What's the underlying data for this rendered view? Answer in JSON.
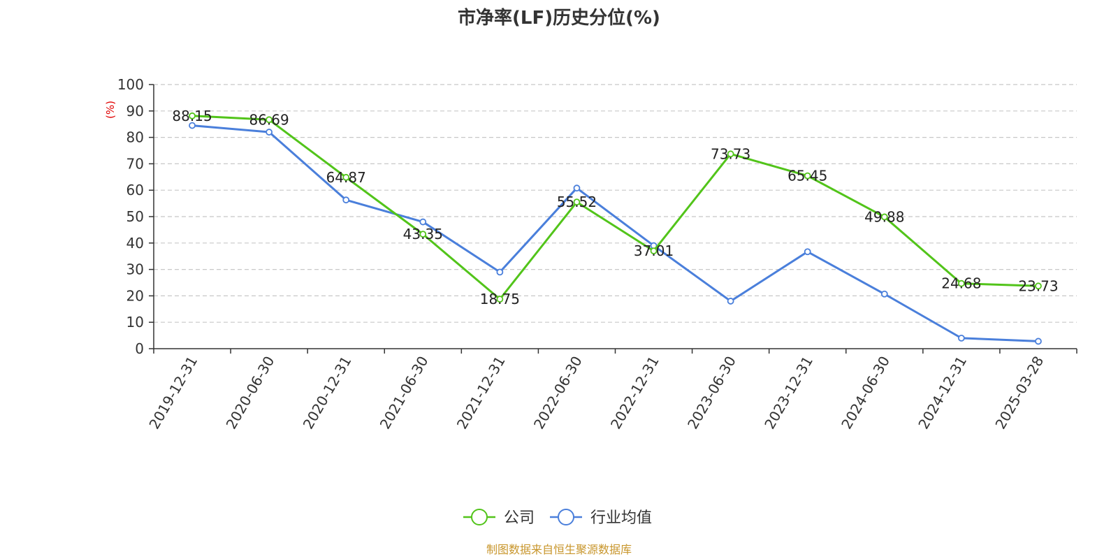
{
  "chart_data": {
    "type": "line",
    "title": "市净率(LF)历史分位(%)",
    "ylabel": "(%)",
    "ylim": [
      0,
      100
    ],
    "yticks": [
      0,
      10,
      20,
      30,
      40,
      50,
      60,
      70,
      80,
      90,
      100
    ],
    "grid": true,
    "legend_position": "bottom",
    "categories": [
      "2019-12-31",
      "2020-06-30",
      "2020-12-31",
      "2021-06-30",
      "2021-12-31",
      "2022-06-30",
      "2022-12-31",
      "2023-06-30",
      "2023-12-31",
      "2024-06-30",
      "2024-12-31",
      "2025-03-28"
    ],
    "series": [
      {
        "name": "公司",
        "color": "#52c41a",
        "show_labels": true,
        "values": [
          88.15,
          86.69,
          64.87,
          43.35,
          18.75,
          55.52,
          37.01,
          73.73,
          65.45,
          49.88,
          24.68,
          23.73
        ]
      },
      {
        "name": "行业均值",
        "color": "#4a7fdb",
        "show_labels": false,
        "values": [
          84.5,
          82.0,
          56.3,
          48.0,
          29.0,
          60.8,
          39.0,
          18.0,
          36.7,
          20.7,
          4.0,
          2.8
        ]
      }
    ],
    "source": "制图数据来自恒生聚源数据库",
    "source_color": "#c8962c",
    "ylabel_color": "#e00000"
  }
}
